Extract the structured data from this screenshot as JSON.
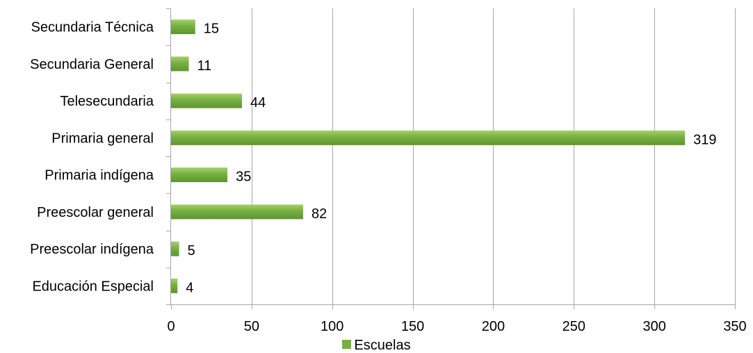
{
  "chart_data": {
    "type": "bar",
    "orientation": "horizontal",
    "categories": [
      "Secundaria Técnica",
      "Secundaria General",
      "Telesecundaria",
      "Primaria general",
      "Primaria indígena",
      "Preescolar general",
      "Preescolar indígena",
      "Educación Especial"
    ],
    "series": [
      {
        "name": "Escuelas",
        "values": [
          15,
          11,
          44,
          319,
          35,
          82,
          5,
          4
        ]
      }
    ],
    "xlim": [
      0,
      350
    ],
    "xticks": [
      "0",
      "50",
      "100",
      "150",
      "200",
      "250",
      "300",
      "350"
    ],
    "grid": true,
    "legend_position": "bottom",
    "bar_color": "#76b041",
    "bar_color_light": "#a4d06a",
    "bar_color_dark": "#5e9433",
    "grid_color": "#a6a6a6"
  }
}
